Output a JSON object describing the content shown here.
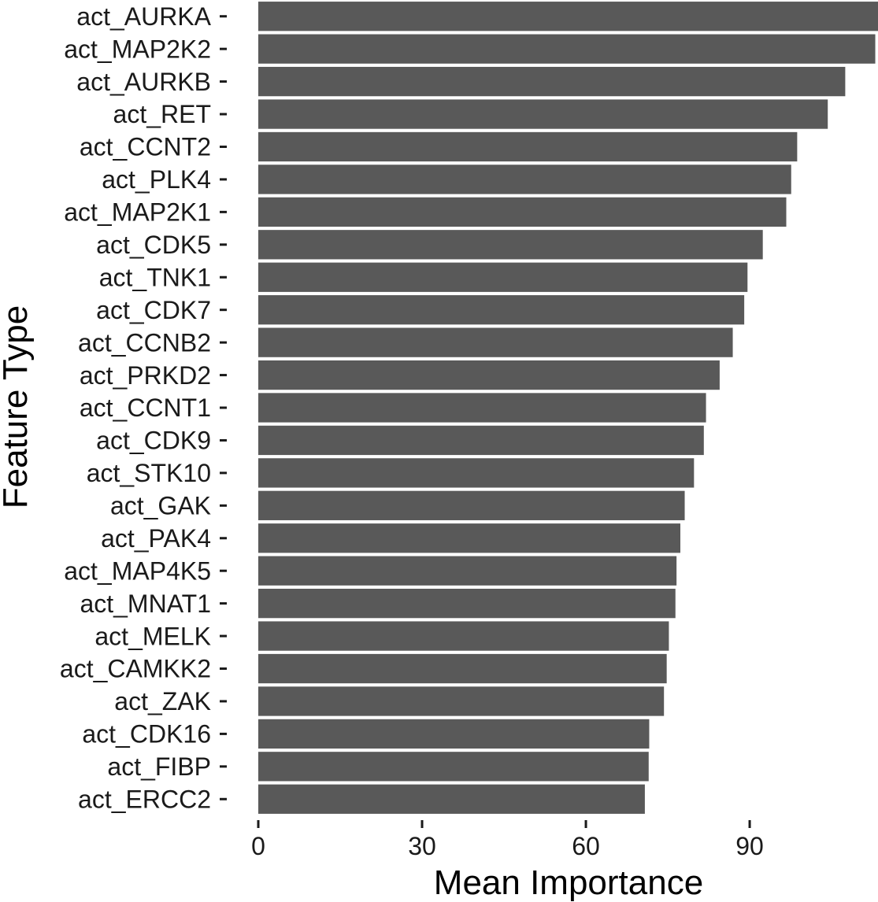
{
  "chart_data": {
    "type": "bar",
    "orientation": "horizontal",
    "xlabel": "Mean Importance",
    "ylabel": "Feature Type",
    "xlim": [
      0,
      113.5
    ],
    "xticks": [
      0,
      30,
      60,
      90
    ],
    "grid": false,
    "bar_color": "#595959",
    "categories": [
      "act_AURKA",
      "act_MAP2K2",
      "act_AURKB",
      "act_RET",
      "act_CCNT2",
      "act_PLK4",
      "act_MAP2K1",
      "act_CDK5",
      "act_TNK1",
      "act_CDK7",
      "act_CCNB2",
      "act_PRKD2",
      "act_CCNT1",
      "act_CDK9",
      "act_STK10",
      "act_GAK",
      "act_PAK4",
      "act_MAP4K5",
      "act_MNAT1",
      "act_MELK",
      "act_CAMKK2",
      "act_ZAK",
      "act_CDK16",
      "act_FIBP",
      "act_ERCC2"
    ],
    "values": [
      113.5,
      113.0,
      107.5,
      104.3,
      98.7,
      97.6,
      96.7,
      92.4,
      89.6,
      89.0,
      86.9,
      84.5,
      82.0,
      81.6,
      79.8,
      78.1,
      77.3,
      76.6,
      76.4,
      75.2,
      74.8,
      74.3,
      71.6,
      71.5,
      70.8
    ]
  }
}
